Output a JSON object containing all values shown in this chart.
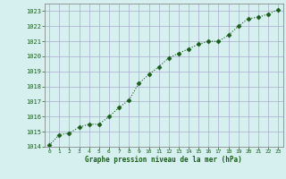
{
  "x": [
    0,
    1,
    2,
    3,
    4,
    5,
    6,
    7,
    8,
    9,
    10,
    11,
    12,
    13,
    14,
    15,
    16,
    17,
    18,
    19,
    20,
    21,
    22,
    23
  ],
  "y": [
    1014.1,
    1014.8,
    1014.9,
    1015.3,
    1015.5,
    1015.5,
    1016.0,
    1016.6,
    1017.1,
    1018.2,
    1018.8,
    1019.3,
    1019.9,
    1020.2,
    1020.5,
    1020.8,
    1021.0,
    1021.0,
    1021.4,
    1022.0,
    1022.5,
    1022.6,
    1022.8,
    1023.1
  ],
  "line_color": "#1a5c1a",
  "marker": "D",
  "marker_size": 2.5,
  "bg_color": "#d6f0f0",
  "grid_color": "#aaaacc",
  "xlabel": "Graphe pression niveau de la mer (hPa)",
  "xlabel_color": "#1a5c1a",
  "tick_label_color": "#1a5c1a",
  "ylim": [
    1014,
    1023.5
  ],
  "yticks": [
    1014,
    1015,
    1016,
    1017,
    1018,
    1019,
    1020,
    1021,
    1022,
    1023
  ],
  "xlim": [
    -0.5,
    23.5
  ],
  "xticks": [
    0,
    1,
    2,
    3,
    4,
    5,
    6,
    7,
    8,
    9,
    10,
    11,
    12,
    13,
    14,
    15,
    16,
    17,
    18,
    19,
    20,
    21,
    22,
    23
  ]
}
